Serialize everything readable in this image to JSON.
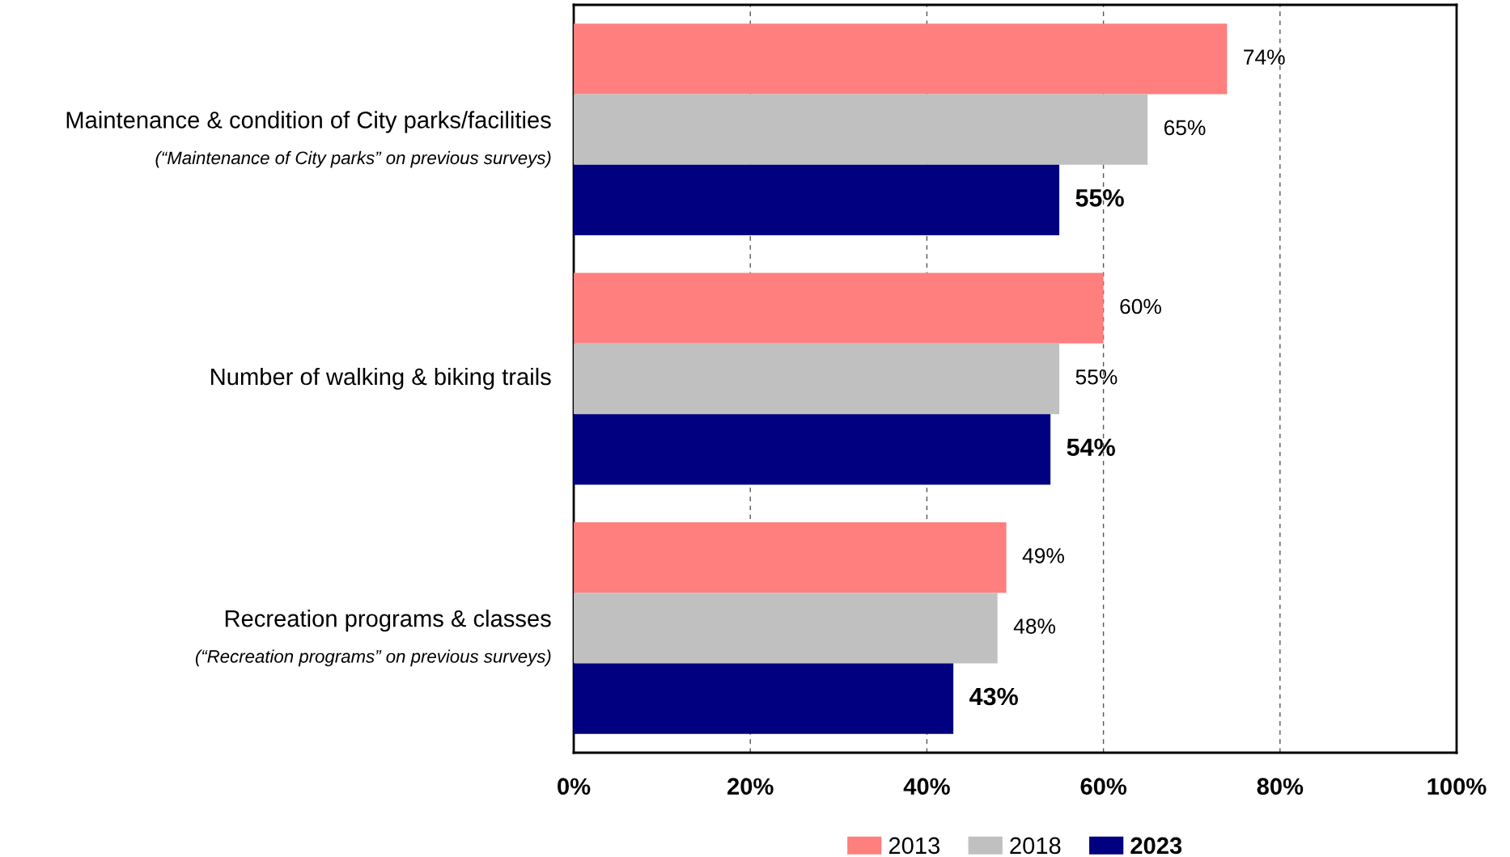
{
  "chart_data": {
    "type": "bar",
    "orientation": "horizontal",
    "categories": [
      "Maintenance & condition of City parks/facilities\n(“Maintenance of City parks” on previous surveys)",
      "Number of walking & biking trails",
      "Recreation programs & classes\n(“Recreation programs” on previous surveys)"
    ],
    "series": [
      {
        "name": "2013",
        "color": "#ff7f7f",
        "values": [
          74,
          60,
          49
        ],
        "value_labels": [
          "74%",
          "60%",
          "49%"
        ]
      },
      {
        "name": "2018",
        "color": "#c0c0c0",
        "values": [
          65,
          55,
          48
        ],
        "value_labels": [
          "65%",
          "55%",
          "48%"
        ]
      },
      {
        "name": "2023",
        "color": "#000080",
        "values": [
          55,
          54,
          43
        ],
        "value_labels": [
          "55%",
          "54%",
          "43%"
        ]
      }
    ],
    "xlim": [
      0,
      100
    ],
    "xticks": [
      {
        "value": 0,
        "label": "0%"
      },
      {
        "value": 20,
        "label": "20%"
      },
      {
        "value": 40,
        "label": "40%"
      },
      {
        "value": 60,
        "label": "60%"
      },
      {
        "value": 80,
        "label": "80%"
      },
      {
        "value": 100,
        "label": "100%"
      }
    ],
    "grid": "x",
    "legend": "bottom"
  }
}
